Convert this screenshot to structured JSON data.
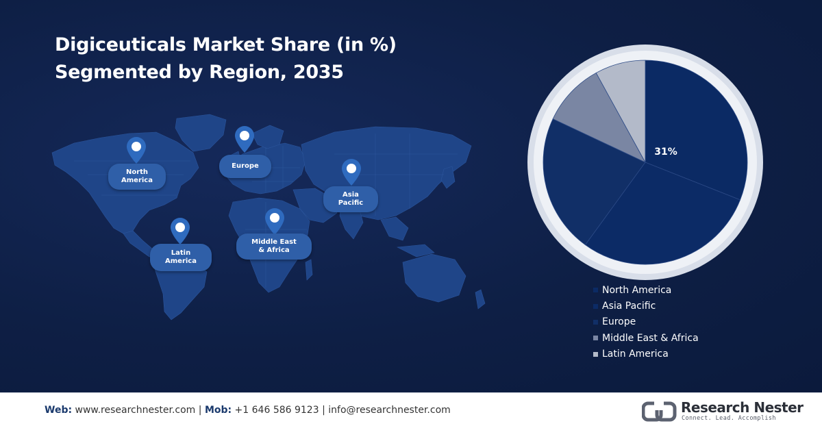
{
  "title": {
    "line1": "Digiceuticals Market Share (in %)",
    "line2": "Segmented by Region, 2035"
  },
  "map_labels": {
    "north_america": "North\nAmerica",
    "europe": "Europe",
    "asia_pacific": "Asia\nPacific",
    "latin_america": "Latin\nAmerica",
    "middle_east_africa": "Middle East\n& Africa"
  },
  "chart_data": {
    "type": "pie",
    "title": "Digiceuticals Market Share (in %) Segmented by Region, 2035",
    "series": [
      {
        "name": "North America",
        "value": 31,
        "color": "#0b2a64",
        "label": "31%"
      },
      {
        "name": "Asia Pacific",
        "value": 29,
        "color": "#0c2b66",
        "label": ""
      },
      {
        "name": "Europe",
        "value": 22,
        "color": "#112f67",
        "label": ""
      },
      {
        "name": "Middle East & Africa",
        "value": 10,
        "color": "#7a86a3",
        "label": ""
      },
      {
        "name": "Latin America",
        "value": 8,
        "color": "#b3bac9",
        "label": ""
      }
    ],
    "legend_position": "bottom-right"
  },
  "footer": {
    "web_label": "Web:",
    "web_value": " www.researchnester.com",
    "sep1": " | ",
    "mob_label": "Mob:",
    "mob_value": " +1 646 586 9123",
    "sep2": " | ",
    "email": "info@researchnester.com"
  },
  "logo": {
    "name": "Research Nester",
    "tagline": "Connect. Lead. Accomplish"
  }
}
